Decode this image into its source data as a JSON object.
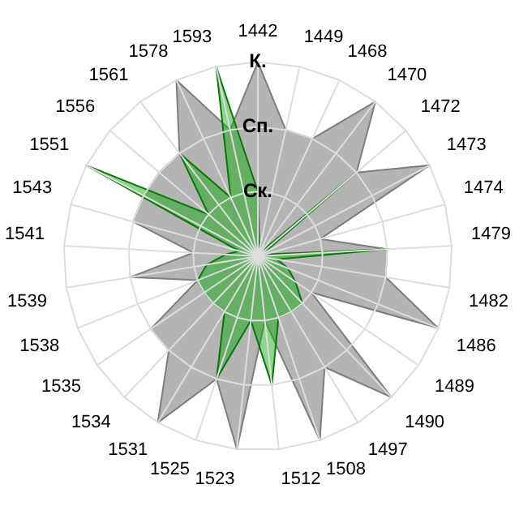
{
  "chart_data": {
    "type": "radar",
    "categories": [
      "1442",
      "1449",
      "1468",
      "1470",
      "1472",
      "1473",
      "1474",
      "1479",
      "1482",
      "1486",
      "1489",
      "1490",
      "1497",
      "1508",
      "1512",
      "1523",
      "1525",
      "1531",
      "1534",
      "1535",
      "1538",
      "1539",
      "1541",
      "1543",
      "1551",
      "1556",
      "1561",
      "1578",
      "1593"
    ],
    "series": [
      {
        "color": "#b4b4b4",
        "values": [
          3,
          2,
          2,
          3,
          2,
          3,
          1,
          2,
          2,
          3,
          1,
          3,
          2,
          3,
          1,
          3,
          2,
          3,
          2,
          2,
          1,
          2,
          1,
          2,
          2,
          2,
          2,
          3,
          2
        ]
      },
      {
        "color": "#0aaa0a",
        "values": [
          1,
          0.1,
          0.1,
          0.1,
          2,
          0.1,
          0.1,
          2,
          0.3,
          0.5,
          0.7,
          1,
          1,
          1,
          2,
          1,
          2,
          1,
          1,
          1,
          1,
          0.8,
          0.5,
          0.3,
          3,
          1,
          2,
          1,
          3
        ]
      }
    ],
    "ylim": [
      0,
      3
    ],
    "yticks": [
      {
        "value": 1,
        "label": "Ск."
      },
      {
        "value": 2,
        "label": "Сп."
      },
      {
        "value": 3,
        "label": "К."
      }
    ],
    "grid": true,
    "legend": false,
    "marker": "none"
  }
}
